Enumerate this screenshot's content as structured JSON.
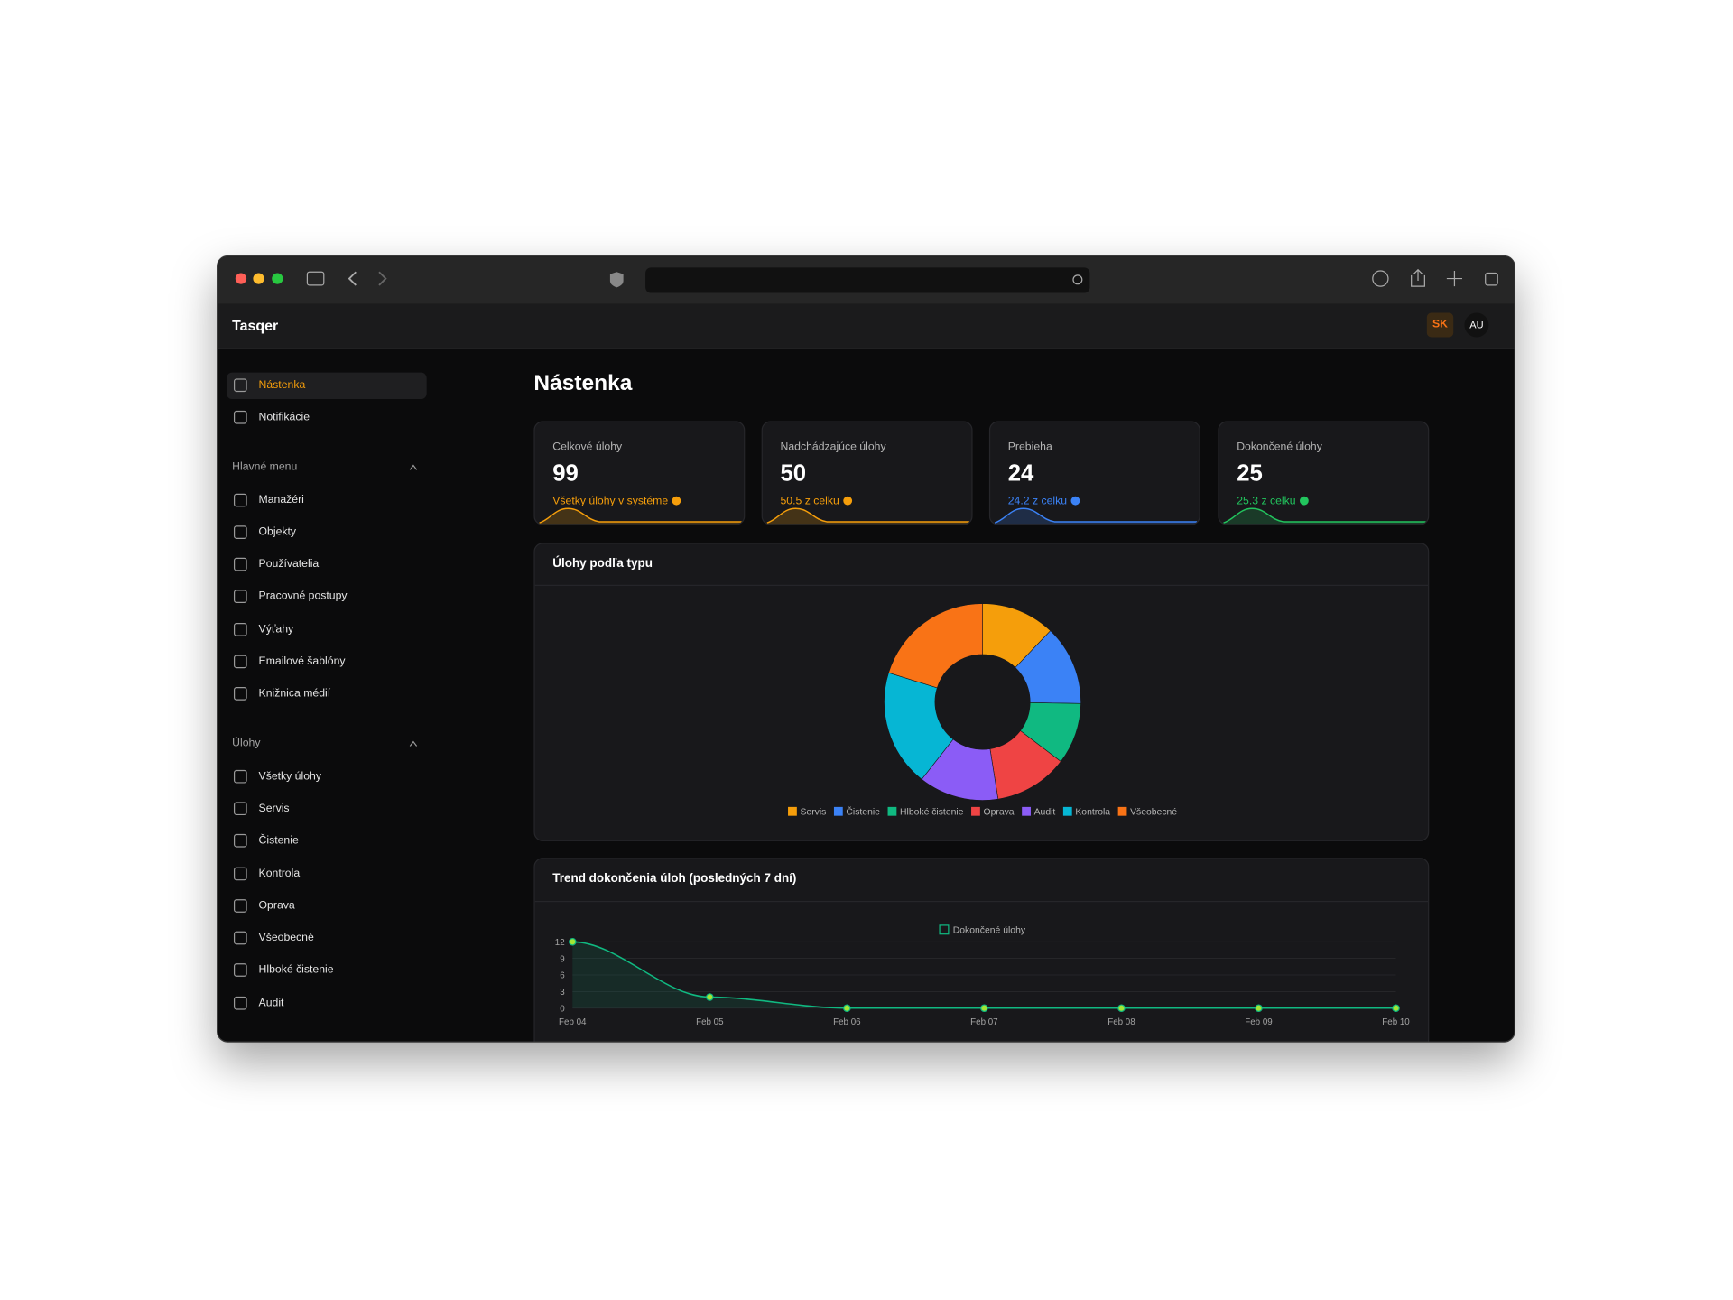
{
  "header": {
    "app_name": "Tasqer",
    "language": "SK",
    "user_initials": "AU"
  },
  "sidebar": {
    "items": [
      {
        "label": "Nástenka",
        "active": true
      },
      {
        "label": "Notifikácie",
        "active": false
      }
    ],
    "sections": [
      {
        "title": "Hlavné menu",
        "items": [
          "Manažéri",
          "Objekty",
          "Používatelia",
          "Pracovné postupy",
          "Výťahy",
          "Emailové šablóny",
          "Knižnica médií"
        ]
      },
      {
        "title": "Úlohy",
        "items": [
          "Všetky úlohy",
          "Servis",
          "Čistenie",
          "Kontrola",
          "Oprava",
          "Všeobecné",
          "Hlboké čistenie",
          "Audit"
        ]
      }
    ]
  },
  "page_title": "Nástenka",
  "stats": [
    {
      "title": "Celkové úlohy",
      "value": 99,
      "note": "Všetky úlohy v systéme",
      "color": "#f59e0b"
    },
    {
      "title": "Nadchádzajúce úlohy",
      "value": 50,
      "note": "50.5 z celku",
      "color": "#f59e0b"
    },
    {
      "title": "Prebieha",
      "value": 24,
      "note": "24.2 z celku",
      "color": "#3b82f6"
    },
    {
      "title": "Dokončené úlohy",
      "value": 25,
      "note": "25.3 z celku",
      "color": "#22c55e"
    }
  ],
  "chart_data": [
    {
      "type": "pie",
      "title": "Úlohy podľa typu",
      "categories": [
        "Servis",
        "Čistenie",
        "Hlboké čistenie",
        "Oprava",
        "Audit",
        "Kontrola",
        "Všeobecné"
      ],
      "values": [
        12,
        13,
        10,
        12,
        13,
        19,
        20
      ],
      "colors": [
        "#f59e0b",
        "#3b82f6",
        "#10b981",
        "#ef4444",
        "#8b5cf6",
        "#06b6d4",
        "#f97316"
      ],
      "donut": true
    },
    {
      "type": "line",
      "title": "Trend dokončenia úloh (posledných 7 dní)",
      "categories": [
        "Feb 04",
        "Feb 05",
        "Feb 06",
        "Feb 07",
        "Feb 08",
        "Feb 09",
        "Feb 10"
      ],
      "series": [
        {
          "name": "Dokončené úlohy",
          "color": "#10b981",
          "values": [
            12,
            2,
            0,
            0,
            0,
            0,
            0
          ]
        }
      ],
      "ylim": [
        0,
        12
      ],
      "yticks": [
        0,
        3,
        6,
        9,
        12
      ],
      "grid": true
    }
  ]
}
